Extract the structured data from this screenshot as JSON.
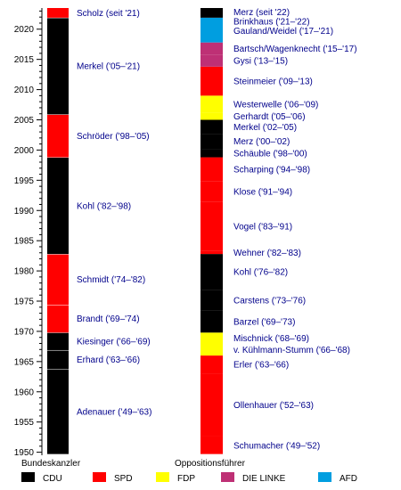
{
  "chart_data": {
    "type": "timeline",
    "title": "",
    "ylim": [
      1949.5,
      2023.5
    ],
    "y_ticks": [
      1950,
      1955,
      1960,
      1965,
      1970,
      1975,
      1980,
      1985,
      1990,
      1995,
      2000,
      2005,
      2010,
      2015,
      2020
    ],
    "column_labels": {
      "left": "Bundeskanzler",
      "right": "Oppositionsführer"
    },
    "parties": {
      "CDU": "#000000",
      "SPD": "#ff0000",
      "FDP": "#ffff00",
      "DIE LINKE": "#be3075",
      "AFD": "#009ee0"
    },
    "legend": [
      {
        "label": "CDU",
        "color": "#000000"
      },
      {
        "label": "SPD",
        "color": "#ff0000"
      },
      {
        "label": "FDP",
        "color": "#ffff00"
      },
      {
        "label": "DIE LINKE",
        "color": "#be3075"
      },
      {
        "label": "AFD",
        "color": "#009ee0"
      }
    ],
    "chancellors": [
      {
        "label": "Adenauer ('49–'63)",
        "party": "CDU",
        "start": 1949.7,
        "end": 1963.8
      },
      {
        "label": "Erhard ('63–'66)",
        "party": "CDU",
        "start": 1963.8,
        "end": 1966.9
      },
      {
        "label": "Kiesinger ('66–'69)",
        "party": "CDU",
        "start": 1966.9,
        "end": 1969.8
      },
      {
        "label": "Brandt ('69–'74)",
        "party": "SPD",
        "start": 1969.8,
        "end": 1974.4
      },
      {
        "label": "Schmidt ('74–'82)",
        "party": "SPD",
        "start": 1974.4,
        "end": 1982.8
      },
      {
        "label": "Kohl ('82–'98)",
        "party": "CDU",
        "start": 1982.8,
        "end": 1998.8
      },
      {
        "label": "Schröder ('98–'05)",
        "party": "SPD",
        "start": 1998.8,
        "end": 2005.9
      },
      {
        "label": "Merkel ('05–'21)",
        "party": "CDU",
        "start": 2005.9,
        "end": 2021.9
      },
      {
        "label": "Scholz (seit '21)",
        "party": "SPD",
        "start": 2021.9,
        "end": 2023.5
      }
    ],
    "opposition_leaders": [
      {
        "label": "Schumacher ('49–'52)",
        "party": "SPD",
        "start": 1949.7,
        "end": 1952.6
      },
      {
        "label": "Ollenhauer ('52–'63)",
        "party": "SPD",
        "start": 1952.6,
        "end": 1963.0
      },
      {
        "label": "Erler ('63–'66)",
        "party": "SPD",
        "start": 1963.0,
        "end": 1966.0
      },
      {
        "label": "v. Kühlmann-Stumm ('66–'68)",
        "party": "FDP",
        "start": 1966.0,
        "end": 1968.0
      },
      {
        "label": "Mischnick ('68–'69)",
        "party": "FDP",
        "start": 1968.0,
        "end": 1969.8
      },
      {
        "label": "Barzel ('69–'73)",
        "party": "CDU",
        "start": 1969.8,
        "end": 1973.4
      },
      {
        "label": "Carstens ('73–'76)",
        "party": "CDU",
        "start": 1973.4,
        "end": 1976.9
      },
      {
        "label": "Kohl ('76–'82)",
        "party": "CDU",
        "start": 1976.9,
        "end": 1982.8
      },
      {
        "label": "Wehner ('82–'83)",
        "party": "SPD",
        "start": 1982.8,
        "end": 1983.3
      },
      {
        "label": "Vogel ('83–'91)",
        "party": "SPD",
        "start": 1983.3,
        "end": 1991.4
      },
      {
        "label": "Klose ('91–'94)",
        "party": "SPD",
        "start": 1991.4,
        "end": 1994.8
      },
      {
        "label": "Scharping ('94–'98)",
        "party": "SPD",
        "start": 1994.8,
        "end": 1998.8
      },
      {
        "label": "Schäuble ('98–'00)",
        "party": "CDU",
        "start": 1998.8,
        "end": 2000.2
      },
      {
        "label": "Merz ('00–'02)",
        "party": "CDU",
        "start": 2000.2,
        "end": 2002.7
      },
      {
        "label": "Merkel ('02–'05)",
        "party": "CDU",
        "start": 2002.7,
        "end": 2005.0
      },
      {
        "label": "Gerhardt ('05–'06)",
        "party": "FDP",
        "start": 2005.0,
        "end": 2006.2
      },
      {
        "label": "Westerwelle ('06–'09)",
        "party": "FDP",
        "start": 2006.2,
        "end": 2009.0
      },
      {
        "label": "Steinmeier ('09–'13)",
        "party": "SPD",
        "start": 2009.0,
        "end": 2013.8
      },
      {
        "label": "Gysi ('13–'15)",
        "party": "DIE LINKE",
        "start": 2013.8,
        "end": 2015.8
      },
      {
        "label": "Bartsch/Wagenknecht ('15–'17)",
        "party": "DIE LINKE",
        "start": 2015.8,
        "end": 2017.8
      },
      {
        "label": "Gauland/Weidel ('17–'21)",
        "party": "AFD",
        "start": 2017.8,
        "end": 2021.9
      },
      {
        "label": "Brinkhaus ('21–'22)",
        "party": "CDU",
        "start": 2021.9,
        "end": 2022.1
      },
      {
        "label": "Merz (seit '22)",
        "party": "CDU",
        "start": 2022.1,
        "end": 2023.5
      }
    ]
  }
}
